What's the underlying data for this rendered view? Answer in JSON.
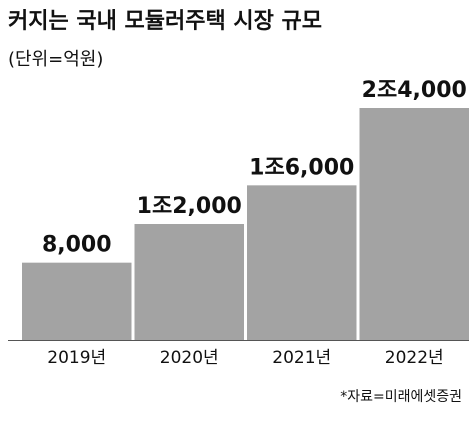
{
  "chart_data": {
    "type": "bar",
    "title": "커지는 국내 모듈러주택 시장 규모",
    "subtitle": "(단위=억원)",
    "categories": [
      "2019년",
      "2020년",
      "2021년",
      "2022년"
    ],
    "values": [
      8000,
      12000,
      16000,
      24000
    ],
    "value_labels": [
      "8,000",
      "1조2,000",
      "1조6,000",
      "2조4,000"
    ],
    "color": "#a3a3a3",
    "source": "*자료=미래에셋증권"
  }
}
